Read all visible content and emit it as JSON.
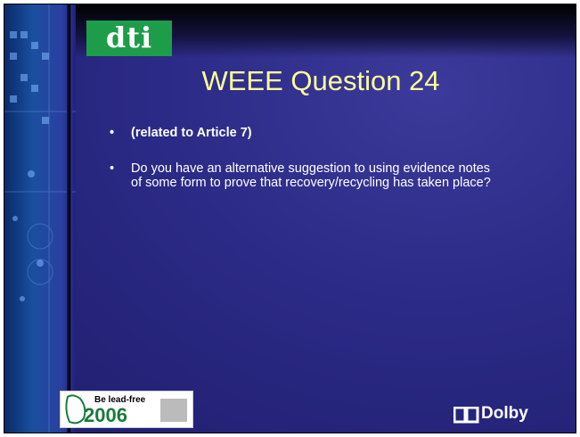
{
  "logo": "dti",
  "title": "WEEE Question 24",
  "bullets": [
    "(related to Article 7)",
    "Do you have an alternative suggestion to using evidence notes of some form to prove that recovery/recycling has taken place?"
  ],
  "badge": {
    "line1": "Be lead-free",
    "year": "2006"
  },
  "brand": "Dolby"
}
